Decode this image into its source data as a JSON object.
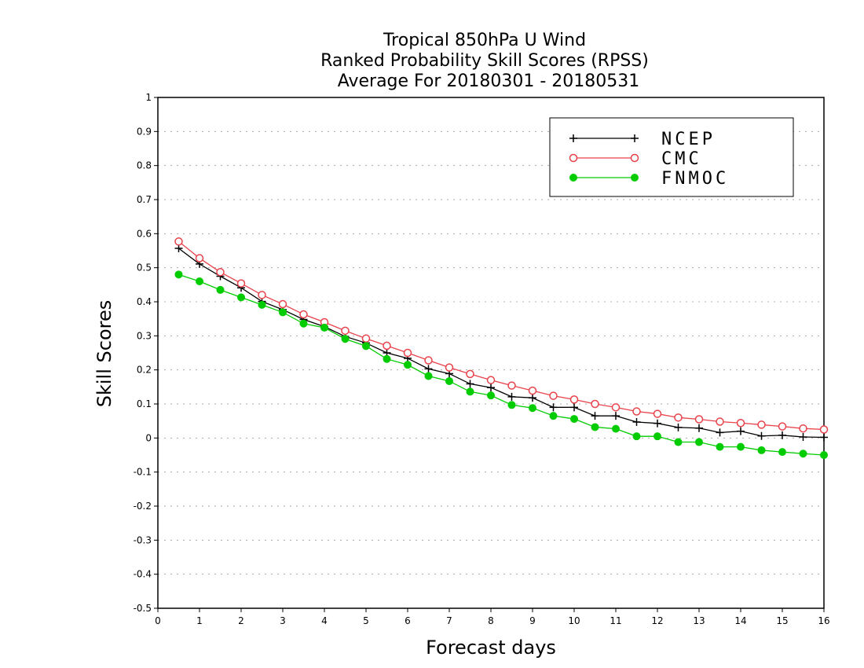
{
  "chart_data": {
    "type": "line",
    "title": [
      "Tropical 850hPa U Wind",
      "Ranked Probability Skill Scores (RPSS)",
      "Average For 20180301 - 20180531"
    ],
    "xlabel": "Forecast days",
    "ylabel": "Skill Scores",
    "xlim": [
      0,
      16
    ],
    "ylim": [
      -0.5,
      1
    ],
    "x_ticks": [
      "0",
      "1",
      "2",
      "3",
      "4",
      "5",
      "6",
      "7",
      "8",
      "9",
      "10",
      "11",
      "12",
      "13",
      "14",
      "15",
      "16"
    ],
    "y_ticks": [
      "-0.5",
      "-0.4",
      "-0.3",
      "-0.2",
      "-0.1",
      "0",
      "0.1",
      "0.2",
      "0.3",
      "0.4",
      "0.5",
      "0.6",
      "0.7",
      "0.8",
      "0.9",
      "1"
    ],
    "grid": true,
    "legend_position": "top-right",
    "x": [
      0.5,
      1,
      1.5,
      2,
      2.5,
      3,
      3.5,
      4,
      4.5,
      5,
      5.5,
      6,
      6.5,
      7,
      7.5,
      8,
      8.5,
      9,
      9.5,
      10,
      10.5,
      11,
      11.5,
      12,
      12.5,
      13,
      13.5,
      14,
      14.5,
      15,
      15.5,
      16
    ],
    "series": [
      {
        "name": "NCEP",
        "color": "#000000",
        "marker": "plus",
        "values": [
          0.557,
          0.511,
          0.475,
          0.441,
          0.401,
          0.377,
          0.348,
          0.327,
          0.298,
          0.279,
          0.25,
          0.234,
          0.203,
          0.189,
          0.159,
          0.148,
          0.121,
          0.118,
          0.09,
          0.09,
          0.065,
          0.065,
          0.047,
          0.043,
          0.031,
          0.029,
          0.016,
          0.02,
          0.006,
          0.008,
          0.003,
          0.002
        ]
      },
      {
        "name": "CMC",
        "color": "#e8424a",
        "marker": "open-circle",
        "values": [
          0.577,
          0.528,
          0.487,
          0.454,
          0.42,
          0.393,
          0.363,
          0.34,
          0.315,
          0.292,
          0.271,
          0.25,
          0.228,
          0.207,
          0.188,
          0.17,
          0.154,
          0.139,
          0.124,
          0.113,
          0.1,
          0.09,
          0.078,
          0.071,
          0.06,
          0.055,
          0.048,
          0.044,
          0.039,
          0.034,
          0.028,
          0.025
        ]
      },
      {
        "name": "FNMOC",
        "color": "#00cc00",
        "marker": "filled-circle",
        "values": [
          0.48,
          0.46,
          0.435,
          0.413,
          0.391,
          0.369,
          0.336,
          0.324,
          0.291,
          0.27,
          0.232,
          0.215,
          0.182,
          0.167,
          0.136,
          0.125,
          0.097,
          0.088,
          0.065,
          0.056,
          0.032,
          0.027,
          0.005,
          0.005,
          -0.012,
          -0.012,
          -0.026,
          -0.026,
          -0.036,
          -0.041,
          -0.046,
          -0.05
        ]
      }
    ]
  }
}
